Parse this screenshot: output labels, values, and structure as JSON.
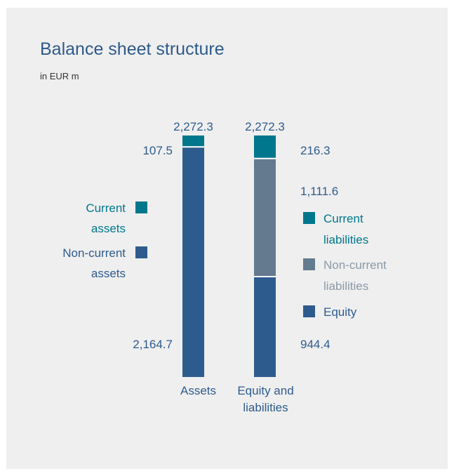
{
  "chart_data": {
    "type": "bar",
    "stacked": true,
    "title": "Balance sheet structure",
    "subtitle": "in EUR m",
    "categories": [
      "Assets",
      "Equity and liabilities"
    ],
    "category_labels": [
      [
        "Assets"
      ],
      [
        "Equity and",
        "liabilities"
      ]
    ],
    "totals": [
      "2,272.3",
      "2,272.3"
    ],
    "bars": [
      {
        "category": "Assets",
        "segments": [
          {
            "name": "Non-current assets",
            "value": 2164.7,
            "label": "2,164.7",
            "color": "#2e5b8d"
          },
          {
            "name": "Current assets",
            "value": 107.5,
            "label": "107.5",
            "color": "#00778c"
          }
        ]
      },
      {
        "category": "Equity and liabilities",
        "segments": [
          {
            "name": "Equity",
            "value": 944.4,
            "label": "944.4",
            "color": "#2e5b8d"
          },
          {
            "name": "Non-current liabilities",
            "value": 1111.6,
            "label": "1,111.6",
            "color": "#647a8e"
          },
          {
            "name": "Current liabilities",
            "value": 216.3,
            "label": "216.3",
            "color": "#00778c"
          }
        ]
      }
    ],
    "legend_left": [
      {
        "lines": [
          "Current",
          "assets"
        ],
        "color": "#00778c",
        "text_color": "#00778c"
      },
      {
        "lines": [
          "Non-current",
          "assets"
        ],
        "color": "#2e5b8d",
        "text_color": "#2e5b8d"
      }
    ],
    "legend_right": [
      {
        "lines": [
          "Current",
          "liabilities"
        ],
        "color": "#00778c",
        "text_color": "#00778c"
      },
      {
        "lines": [
          "Non-current",
          "liabilities"
        ],
        "color": "#647a8e",
        "text_color": "#8a99a8"
      },
      {
        "lines": [
          "Equity"
        ],
        "color": "#2e5b8d",
        "text_color": "#2e5b8d"
      }
    ],
    "label_color": "#2e5b8d",
    "ylim": [
      0,
      2272.3
    ],
    "grid": false
  }
}
